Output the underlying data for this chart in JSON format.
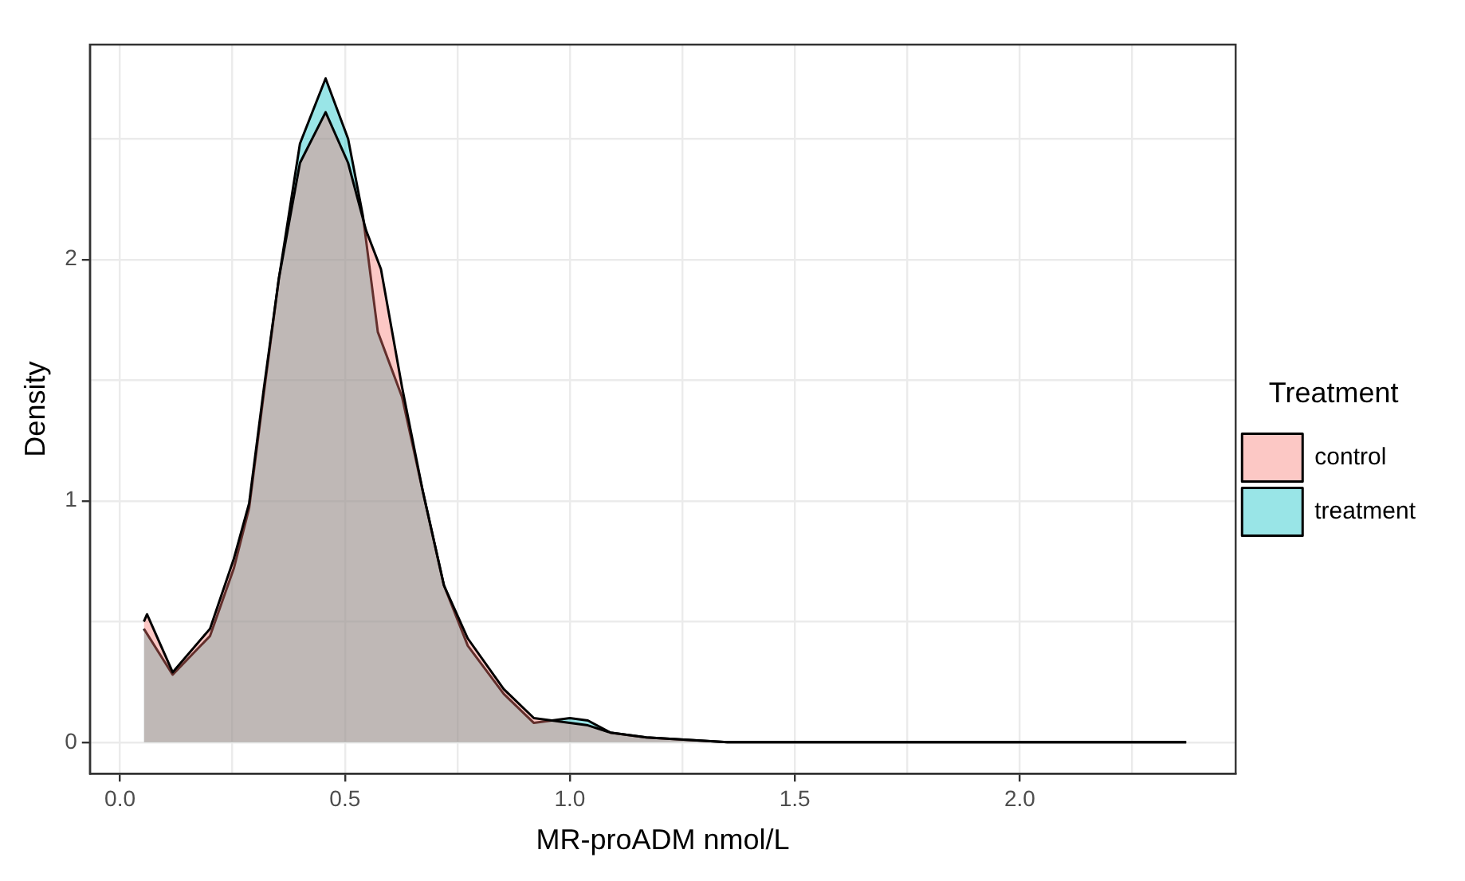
{
  "chart_data": {
    "type": "area",
    "xlabel": "MR-proADM nmol/L",
    "ylabel": "Density",
    "legend_title": "Treatment",
    "legend": "right",
    "grid": true,
    "marker": "none",
    "line_style": "solid",
    "xlim": [
      -0.067,
      2.48
    ],
    "xticks": [
      {
        "value": 0,
        "label": "0.0"
      },
      {
        "value": 0.25,
        "label": null
      },
      {
        "value": 0.5,
        "label": "0.5"
      },
      {
        "value": 0.75,
        "label": null
      },
      {
        "value": 1,
        "label": "1.0"
      },
      {
        "value": 1.25,
        "label": null
      },
      {
        "value": 1.5,
        "label": "1.5"
      },
      {
        "value": 1.75,
        "label": null
      },
      {
        "value": 2,
        "label": "2.0"
      },
      {
        "value": 2.25,
        "label": null
      }
    ],
    "ylim": [
      -0.13,
      2.89
    ],
    "yticks": [
      0,
      {
        "value": 0.5,
        "label": null
      },
      1,
      {
        "value": 1.5,
        "label": null
      },
      2,
      {
        "value": 2.5,
        "label": null
      }
    ],
    "series": [
      {
        "name": "control",
        "color": "#f8766d",
        "x": [
          0.053,
          0.06,
          0.117,
          0.2,
          0.253,
          0.287,
          0.32,
          0.353,
          0.4,
          0.457,
          0.507,
          0.547,
          0.58,
          0.627,
          0.673,
          0.72,
          0.773,
          0.853,
          0.92,
          1.0,
          1.04,
          1.09,
          1.17,
          1.35,
          2.37
        ],
        "values": [
          0.5,
          0.53,
          0.29,
          0.47,
          0.76,
          0.99,
          1.47,
          1.92,
          2.4,
          2.61,
          2.4,
          2.12,
          1.96,
          1.47,
          1.04,
          0.65,
          0.43,
          0.22,
          0.1,
          0.08,
          0.07,
          0.04,
          0.02,
          0,
          0
        ]
      },
      {
        "name": "treatment",
        "color": "#00bfc4",
        "x": [
          0.053,
          0.117,
          0.2,
          0.253,
          0.287,
          0.32,
          0.353,
          0.4,
          0.457,
          0.507,
          0.54,
          0.573,
          0.627,
          0.673,
          0.72,
          0.773,
          0.853,
          0.92,
          1.0,
          1.04,
          1.09,
          1.17,
          1.35,
          2.37
        ],
        "values": [
          0.47,
          0.28,
          0.44,
          0.72,
          0.97,
          1.45,
          1.92,
          2.48,
          2.75,
          2.5,
          2.18,
          1.7,
          1.43,
          1.04,
          0.65,
          0.4,
          0.2,
          0.08,
          0.1,
          0.09,
          0.04,
          0.02,
          0,
          0
        ]
      }
    ]
  }
}
